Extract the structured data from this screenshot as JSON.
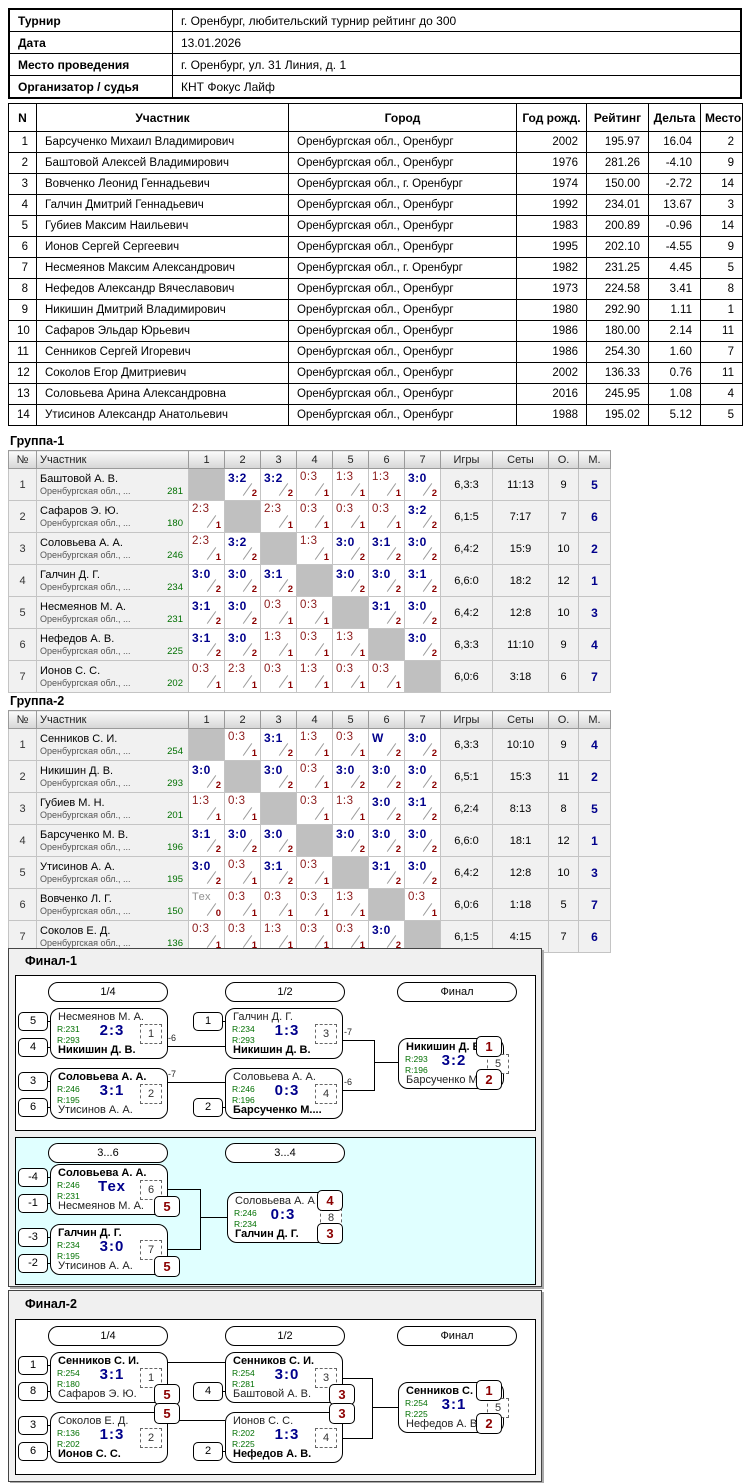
{
  "colors": {
    "win_navy": "#00008b",
    "loss_maroon": "#8b1a1a",
    "points_maroon": "#8b0000",
    "rating_green": "#007000",
    "badge_red": "#8b0000",
    "consolation_bg": "#e0ffff",
    "self_cell_gray": "#c0c0c0"
  },
  "info_table": {
    "rows": [
      {
        "label": "Турнир",
        "value": "г. Оренбург, любительский турнир рейтинг до 300"
      },
      {
        "label": "Дата",
        "value": "13.01.2026"
      },
      {
        "label": "Место проведения",
        "value": "г. Оренбург, ул. 31 Линия, д. 1"
      },
      {
        "label": "Организатор / судья",
        "value": "КНТ Фокус Лайф"
      }
    ]
  },
  "participants": {
    "headers": [
      "N",
      "Участник",
      "Город",
      "Год рожд.",
      "Рейтинг",
      "Дельта",
      "Место"
    ],
    "rows": [
      {
        "n": "1",
        "name": "Барсученко Михаил Владимирович",
        "city": "Оренбургская обл., Оренбург",
        "year": "2002",
        "rating": "195.97",
        "delta": "16.04",
        "place": "2"
      },
      {
        "n": "2",
        "name": "Баштовой Алексей Владимирович",
        "city": "Оренбургская обл., Оренбург",
        "year": "1976",
        "rating": "281.26",
        "delta": "-4.10",
        "place": "9"
      },
      {
        "n": "3",
        "name": "Вовченко Леонид Геннадьевич",
        "city": "Оренбургская обл., г. Оренбург",
        "year": "1974",
        "rating": "150.00",
        "delta": "-2.72",
        "place": "14"
      },
      {
        "n": "4",
        "name": "Галчин Дмитрий Геннадьевич",
        "city": "Оренбургская обл., Оренбург",
        "year": "1992",
        "rating": "234.01",
        "delta": "13.67",
        "place": "3"
      },
      {
        "n": "5",
        "name": "Губиев Максим Наильевич",
        "city": "Оренбургская обл., Оренбург",
        "year": "1983",
        "rating": "200.89",
        "delta": "-0.96",
        "place": "14"
      },
      {
        "n": "6",
        "name": "Ионов Сергей Сергеевич",
        "city": "Оренбургская обл., Оренбург",
        "year": "1995",
        "rating": "202.10",
        "delta": "-4.55",
        "place": "9"
      },
      {
        "n": "7",
        "name": "Несмеянов Максим Александрович",
        "city": "Оренбургская обл., г. Оренбург",
        "year": "1982",
        "rating": "231.25",
        "delta": "4.45",
        "place": "5"
      },
      {
        "n": "8",
        "name": "Нефедов Александр Вячеславович",
        "city": "Оренбургская обл., Оренбург",
        "year": "1973",
        "rating": "224.58",
        "delta": "3.41",
        "place": "8"
      },
      {
        "n": "9",
        "name": "Никишин Дмитрий Владимирович",
        "city": "Оренбургская обл., Оренбург",
        "year": "1980",
        "rating": "292.90",
        "delta": "1.11",
        "place": "1"
      },
      {
        "n": "10",
        "name": "Сафаров Эльдар Юрьевич",
        "city": "Оренбургская обл., Оренбург",
        "year": "1986",
        "rating": "180.00",
        "delta": "2.14",
        "place": "11"
      },
      {
        "n": "11",
        "name": "Сенников Сергей Игоревич",
        "city": "Оренбургская обл., Оренбург",
        "year": "1986",
        "rating": "254.30",
        "delta": "1.60",
        "place": "7"
      },
      {
        "n": "12",
        "name": "Соколов Егор Дмитриевич",
        "city": "Оренбургская обл., Оренбург",
        "year": "2002",
        "rating": "136.33",
        "delta": "0.76",
        "place": "11"
      },
      {
        "n": "13",
        "name": "Соловьева Арина Александровна",
        "city": "Оренбургская обл., Оренбург",
        "year": "2016",
        "rating": "245.95",
        "delta": "1.08",
        "place": "4"
      },
      {
        "n": "14",
        "name": "Утисинов Александр Анатольевич",
        "city": "Оренбургская обл., Оренбург",
        "year": "1988",
        "rating": "195.02",
        "delta": "5.12",
        "place": "5"
      }
    ]
  },
  "groups": [
    {
      "title": "Группа-1",
      "headers": [
        "№",
        "Участник",
        "1",
        "2",
        "3",
        "4",
        "5",
        "6",
        "7",
        "Игры",
        "Сеты",
        "О.",
        "М."
      ],
      "players": [
        {
          "n": "1",
          "name": "Баштовой А. В.",
          "region": "Оренбургская обл., ...",
          "rating": "281",
          "cells": [
            "",
            "3:2|2|w",
            "3:2|2|w",
            "0:3|1|l",
            "1:3|1|l",
            "1:3|1|l",
            "3:0|2|w"
          ],
          "games": "6,3:3",
          "sets": "11:13",
          "pts": "9",
          "place": "5"
        },
        {
          "n": "2",
          "name": "Сафаров Э. Ю.",
          "region": "Оренбургская обл., ...",
          "rating": "180",
          "cells": [
            "2:3|1|l",
            "",
            "2:3|1|l",
            "0:3|1|l",
            "0:3|1|l",
            "0:3|1|l",
            "3:2|2|w"
          ],
          "games": "6,1:5",
          "sets": "7:17",
          "pts": "7",
          "place": "6"
        },
        {
          "n": "3",
          "name": "Соловьева А. А.",
          "region": "Оренбургская обл., ...",
          "rating": "246",
          "cells": [
            "2:3|1|l",
            "3:2|2|w",
            "",
            "1:3|1|l",
            "3:0|2|w",
            "3:1|2|w",
            "3:0|2|w"
          ],
          "games": "6,4:2",
          "sets": "15:9",
          "pts": "10",
          "place": "2"
        },
        {
          "n": "4",
          "name": "Галчин Д. Г.",
          "region": "Оренбургская обл., ...",
          "rating": "234",
          "cells": [
            "3:0|2|w",
            "3:0|2|w",
            "3:1|2|w",
            "",
            "3:0|2|w",
            "3:0|2|w",
            "3:1|2|w"
          ],
          "games": "6,6:0",
          "sets": "18:2",
          "pts": "12",
          "place": "1"
        },
        {
          "n": "5",
          "name": "Несмеянов М. А.",
          "region": "Оренбургская обл., ...",
          "rating": "231",
          "cells": [
            "3:1|2|w",
            "3:0|2|w",
            "0:3|1|l",
            "0:3|1|l",
            "",
            "3:1|2|w",
            "3:0|2|w"
          ],
          "games": "6,4:2",
          "sets": "12:8",
          "pts": "10",
          "place": "3"
        },
        {
          "n": "6",
          "name": "Нефедов А. В.",
          "region": "Оренбургская обл., ...",
          "rating": "225",
          "cells": [
            "3:1|2|w",
            "3:0|2|w",
            "1:3|1|l",
            "0:3|1|l",
            "1:3|1|l",
            "",
            "3:0|2|w"
          ],
          "games": "6,3:3",
          "sets": "11:10",
          "pts": "9",
          "place": "4"
        },
        {
          "n": "7",
          "name": "Ионов С. С.",
          "region": "Оренбургская обл., ...",
          "rating": "202",
          "cells": [
            "0:3|1|l",
            "2:3|1|l",
            "0:3|1|l",
            "1:3|1|l",
            "0:3|1|l",
            "0:3|1|l",
            ""
          ],
          "games": "6,0:6",
          "sets": "3:18",
          "pts": "6",
          "place": "7"
        }
      ]
    },
    {
      "title": "Группа-2",
      "headers": [
        "№",
        "Участник",
        "1",
        "2",
        "3",
        "4",
        "5",
        "6",
        "7",
        "Игры",
        "Сеты",
        "О.",
        "М."
      ],
      "players": [
        {
          "n": "1",
          "name": "Сенников С. И.",
          "region": "Оренбургская обл., ...",
          "rating": "254",
          "cells": [
            "",
            "0:3|1|l",
            "3:1|2|w",
            "1:3|1|l",
            "0:3|1|l",
            "W|2|w",
            "3:0|2|w"
          ],
          "games": "6,3:3",
          "sets": "10:10",
          "pts": "9",
          "place": "4"
        },
        {
          "n": "2",
          "name": "Никишин Д. В.",
          "region": "Оренбургская обл., ...",
          "rating": "293",
          "cells": [
            "3:0|2|w",
            "",
            "3:0|2|w",
            "0:3|1|l",
            "3:0|2|w",
            "3:0|2|w",
            "3:0|2|w"
          ],
          "games": "6,5:1",
          "sets": "15:3",
          "pts": "11",
          "place": "2"
        },
        {
          "n": "3",
          "name": "Губиев М. Н.",
          "region": "Оренбургская обл., ...",
          "rating": "201",
          "cells": [
            "1:3|1|l",
            "0:3|1|l",
            "",
            "0:3|1|l",
            "1:3|1|l",
            "3:0|2|w",
            "3:1|2|w"
          ],
          "games": "6,2:4",
          "sets": "8:13",
          "pts": "8",
          "place": "5"
        },
        {
          "n": "4",
          "name": "Барсученко М. В.",
          "region": "Оренбургская обл., ...",
          "rating": "196",
          "cells": [
            "3:1|2|w",
            "3:0|2|w",
            "3:0|2|w",
            "",
            "3:0|2|w",
            "3:0|2|w",
            "3:0|2|w"
          ],
          "games": "6,6:0",
          "sets": "18:1",
          "pts": "12",
          "place": "1"
        },
        {
          "n": "5",
          "name": "Утисинов А. А.",
          "region": "Оренбургская обл., ...",
          "rating": "195",
          "cells": [
            "3:0|2|w",
            "0:3|1|l",
            "3:1|2|w",
            "0:3|1|l",
            "",
            "3:1|2|w",
            "3:0|2|w"
          ],
          "games": "6,4:2",
          "sets": "12:8",
          "pts": "10",
          "place": "3"
        },
        {
          "n": "6",
          "name": "Вовченко Л. Г.",
          "region": "Оренбургская обл., ...",
          "rating": "150",
          "cells": [
            "Тех|0|t",
            "0:3|1|l",
            "0:3|1|l",
            "0:3|1|l",
            "1:3|1|l",
            "",
            "0:3|1|l"
          ],
          "games": "6,0:6",
          "sets": "1:18",
          "pts": "5",
          "place": "7"
        },
        {
          "n": "7",
          "name": "Соколов Е. Д.",
          "region": "Оренбургская обл., ...",
          "rating": "136",
          "cells": [
            "0:3|1|l",
            "0:3|1|l",
            "1:3|1|l",
            "0:3|1|l",
            "0:3|1|l",
            "3:0|2|w",
            ""
          ],
          "games": "6,1:5",
          "sets": "4:15",
          "pts": "7",
          "place": "6"
        }
      ]
    }
  ],
  "finals": [
    {
      "title": "Финал-1",
      "round_labels": [
        "1/4",
        "1/2",
        "Финал",
        "3...6",
        "3...4"
      ],
      "matches": {
        "qf1": {
          "no": "1",
          "score": "2:3",
          "out": "-6",
          "p1": {
            "seed": "5",
            "name": "Несмеянов М. А.",
            "r": "R:231"
          },
          "p2": {
            "seed": "4",
            "name": "Никишин Д. В.",
            "r": "R:293",
            "winner": true
          }
        },
        "qf2": {
          "no": "2",
          "score": "3:1",
          "out": "-7",
          "p1": {
            "seed": "3",
            "name": "Соловьева А. А.",
            "r": "R:246",
            "winner": true
          },
          "p2": {
            "seed": "6",
            "name": "Утисинов А. А.",
            "r": "R:195"
          }
        },
        "sf1": {
          "no": "3",
          "score": "1:3",
          "out": "-7",
          "p1": {
            "seed": "1",
            "name": "Галчин Д. Г.",
            "r": "R:234"
          },
          "p2": {
            "name": "Никишин Д. В.",
            "r": "R:293",
            "winner": true
          }
        },
        "sf2": {
          "no": "4",
          "score": "0:3",
          "out": "-6",
          "p1": {
            "name": "Соловьева А. А.",
            "r": "R:246"
          },
          "p2": {
            "seed": "2",
            "name": "Барсученко М....",
            "r": "R:196",
            "winner": true
          }
        },
        "final": {
          "no": "5",
          "score": "3:2",
          "p1": {
            "name": "Никишин Д. В.",
            "r": "R:293",
            "winner": true,
            "badge": "1"
          },
          "p2": {
            "name": "Барсученко М....",
            "r": "R:196",
            "badge": "2"
          }
        },
        "c1": {
          "no": "6",
          "score": "Тех",
          "p1": {
            "seed": "-4",
            "name": "Соловьева А. А.",
            "r": "R:246",
            "winner": true
          },
          "p2": {
            "seed": "-1",
            "name": "Несмеянов М. А.",
            "r": "R:231",
            "badge": "5"
          }
        },
        "c2": {
          "no": "7",
          "score": "3:0",
          "p1": {
            "seed": "-3",
            "name": "Галчин Д. Г.",
            "r": "R:234",
            "winner": true
          },
          "p2": {
            "seed": "-2",
            "name": "Утисинов А. А.",
            "r": "R:195",
            "badge": "5"
          }
        },
        "c3": {
          "no": "8",
          "score": "0:3",
          "p1": {
            "name": "Соловьева А. А.",
            "r": "R:246",
            "badge": "4"
          },
          "p2": {
            "name": "Галчин Д. Г.",
            "r": "R:234",
            "winner": true,
            "badge": "3"
          }
        }
      }
    },
    {
      "title": "Финал-2",
      "round_labels": [
        "1/4",
        "1/2",
        "Финал"
      ],
      "matches": {
        "qf1": {
          "no": "1",
          "score": "3:1",
          "p1": {
            "seed": "1",
            "name": "Сенников С. И.",
            "r": "R:254",
            "winner": true
          },
          "p2": {
            "seed": "8",
            "name": "Сафаров Э. Ю.",
            "r": "R:180",
            "badge": "5"
          }
        },
        "qf2": {
          "no": "2",
          "score": "1:3",
          "p1": {
            "seed": "3",
            "name": "Соколов Е. Д.",
            "r": "R:136",
            "badge": "5"
          },
          "p2": {
            "seed": "6",
            "name": "Ионов С. С.",
            "r": "R:202",
            "winner": true
          }
        },
        "sf1": {
          "no": "3",
          "score": "3:0",
          "p1": {
            "name": "Сенников С. И.",
            "r": "R:254",
            "winner": true
          },
          "p2": {
            "seed": "4",
            "name": "Баштовой А. В.",
            "r": "R:281",
            "badge": "3"
          }
        },
        "sf2": {
          "no": "4",
          "score": "1:3",
          "p1": {
            "name": "Ионов С. С.",
            "r": "R:202",
            "badge": "3"
          },
          "p2": {
            "seed": "2",
            "name": "Нефедов А. В.",
            "r": "R:225",
            "winner": true
          }
        },
        "final": {
          "no": "5",
          "score": "3:1",
          "p1": {
            "name": "Сенников С. И.",
            "r": "R:254",
            "winner": true,
            "badge": "1"
          },
          "p2": {
            "name": "Нефедов А. В.",
            "r": "R:225",
            "badge": "2"
          }
        }
      }
    }
  ]
}
